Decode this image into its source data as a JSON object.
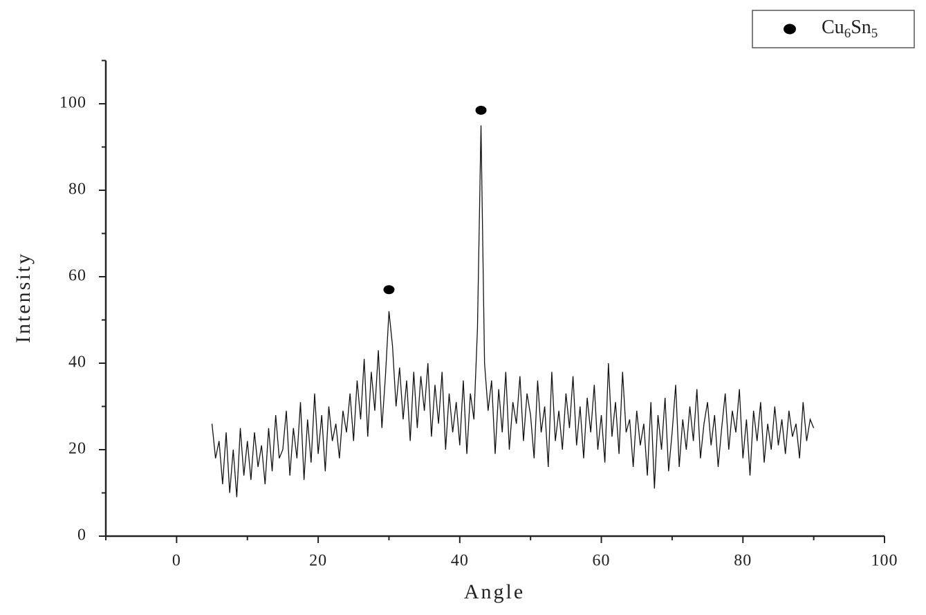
{
  "chart_data": {
    "type": "line",
    "xlabel": "Angle",
    "ylabel": "Intensity",
    "xlim": [
      -10,
      100
    ],
    "xticks": [
      0,
      20,
      40,
      60,
      80,
      100
    ],
    "ylim": [
      0,
      110
    ],
    "yticks": [
      0,
      20,
      40,
      60,
      80,
      100
    ],
    "grid": false,
    "legend": "top-right",
    "series": [
      {
        "type": "line",
        "color": "#111111",
        "x": [
          5,
          5.5,
          6,
          6.5,
          7,
          7.5,
          8,
          8.5,
          9,
          9.5,
          10,
          10.5,
          11,
          11.5,
          12,
          12.5,
          13,
          13.5,
          14,
          14.5,
          15,
          15.5,
          16,
          16.5,
          17,
          17.5,
          18,
          18.5,
          19,
          19.5,
          20,
          20.5,
          21,
          21.5,
          22,
          22.5,
          23,
          23.5,
          24,
          24.5,
          25,
          25.5,
          26,
          26.5,
          27,
          27.5,
          28,
          28.5,
          29,
          29.5,
          30,
          30.5,
          31,
          31.5,
          32,
          32.5,
          33,
          33.5,
          34,
          34.5,
          35,
          35.5,
          36,
          36.5,
          37,
          37.5,
          38,
          38.5,
          39,
          39.5,
          40,
          40.5,
          41,
          41.5,
          42,
          42.5,
          43,
          43.5,
          44,
          44.5,
          45,
          45.5,
          46,
          46.5,
          47,
          47.5,
          48,
          48.5,
          49,
          49.5,
          50,
          50.5,
          51,
          51.5,
          52,
          52.5,
          53,
          53.5,
          54,
          54.5,
          55,
          55.5,
          56,
          56.5,
          57,
          57.5,
          58,
          58.5,
          59,
          59.5,
          60,
          60.5,
          61,
          61.5,
          62,
          62.5,
          63,
          63.5,
          64,
          64.5,
          65,
          65.5,
          66,
          66.5,
          67,
          67.5,
          68,
          68.5,
          69,
          69.5,
          70,
          70.5,
          71,
          71.5,
          72,
          72.5,
          73,
          73.5,
          74,
          74.5,
          75,
          75.5,
          76,
          76.5,
          77,
          77.5,
          78,
          78.5,
          79,
          79.5,
          80,
          80.5,
          81,
          81.5,
          82,
          82.5,
          83,
          83.5,
          84,
          84.5,
          85,
          85.5,
          86,
          86.5,
          87,
          87.5,
          88,
          88.5,
          89,
          89.5,
          90
        ],
        "values": [
          26,
          18,
          22,
          12,
          24,
          10,
          20,
          9,
          25,
          14,
          22,
          13,
          24,
          16,
          21,
          12,
          25,
          15,
          28,
          18,
          20,
          29,
          14,
          25,
          18,
          31,
          13,
          27,
          17,
          33,
          19,
          28,
          15,
          30,
          22,
          26,
          18,
          29,
          24,
          33,
          22,
          36,
          27,
          41,
          23,
          38,
          29,
          43,
          25,
          37,
          52,
          44,
          30,
          39,
          27,
          36,
          22,
          38,
          25,
          37,
          29,
          40,
          23,
          35,
          26,
          38,
          20,
          33,
          24,
          31,
          21,
          36,
          19,
          33,
          27,
          48,
          95,
          40,
          29,
          36,
          19,
          34,
          24,
          38,
          20,
          31,
          26,
          37,
          22,
          33,
          28,
          18,
          36,
          24,
          30,
          16,
          38,
          22,
          29,
          20,
          33,
          25,
          37,
          21,
          30,
          18,
          32,
          24,
          35,
          20,
          28,
          17,
          40,
          23,
          31,
          19,
          38,
          24,
          27,
          16,
          29,
          21,
          26,
          14,
          31,
          11,
          28,
          20,
          32,
          15,
          24,
          35,
          16,
          27,
          20,
          30,
          22,
          34,
          18,
          26,
          31,
          21,
          28,
          16,
          25,
          33,
          20,
          29,
          24,
          34,
          18,
          27,
          14,
          29,
          22,
          31,
          17,
          26,
          20,
          30,
          21,
          27,
          19,
          29,
          23,
          26,
          18,
          31,
          22,
          27,
          25
        ]
      },
      {
        "type": "scatter",
        "name": "Cu6Sn5",
        "color": "#000000",
        "x": [
          30,
          43
        ],
        "values": [
          57,
          98.5
        ]
      }
    ]
  }
}
